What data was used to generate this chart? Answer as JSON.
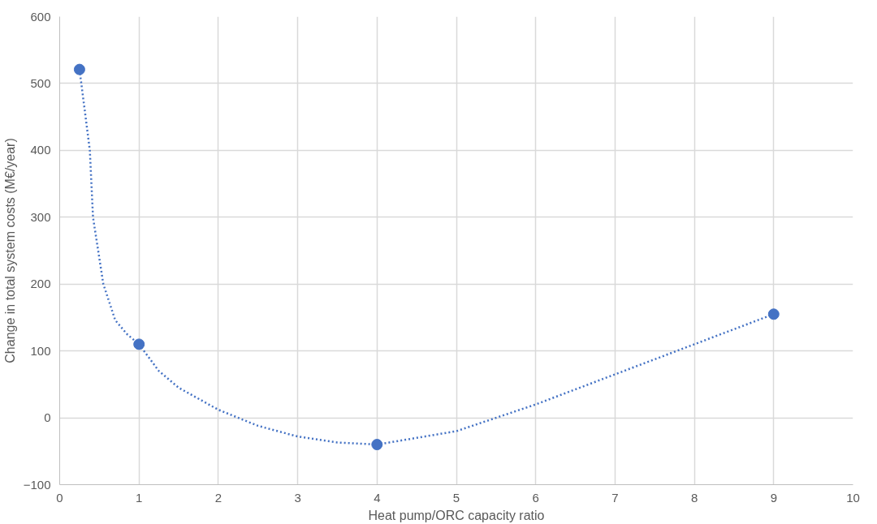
{
  "chart_data": {
    "type": "scatter",
    "xlabel": "Heat pump/ORC capacity ratio",
    "ylabel": "Change in total system costs (M€/year)",
    "xlim": [
      0,
      10
    ],
    "xticks": [
      0,
      1,
      2,
      3,
      4,
      5,
      6,
      7,
      8,
      9,
      10
    ],
    "ylim": [
      -100,
      600
    ],
    "yticks": [
      -100,
      0,
      100,
      200,
      300,
      400,
      500,
      600
    ],
    "grid": true,
    "series": [
      {
        "type": "line",
        "color": "#4472c4",
        "line_style": "dotted",
        "marker": "none",
        "x": [
          0.25,
          0.38,
          0.42,
          0.55,
          0.7,
          0.85,
          1,
          1.25,
          1.5,
          2,
          2.5,
          3,
          3.5,
          4,
          5,
          6,
          7,
          8,
          9
        ],
        "values": [
          521,
          400,
          300,
          200,
          146,
          125,
          110,
          70,
          45,
          12,
          -12,
          -28,
          -37,
          -40,
          -20,
          20,
          65,
          110,
          155
        ]
      },
      {
        "color": "#4472c4",
        "marker": "circle",
        "x": [
          0.25,
          1,
          4,
          9
        ],
        "values": [
          521,
          110,
          -40,
          155
        ]
      }
    ]
  }
}
